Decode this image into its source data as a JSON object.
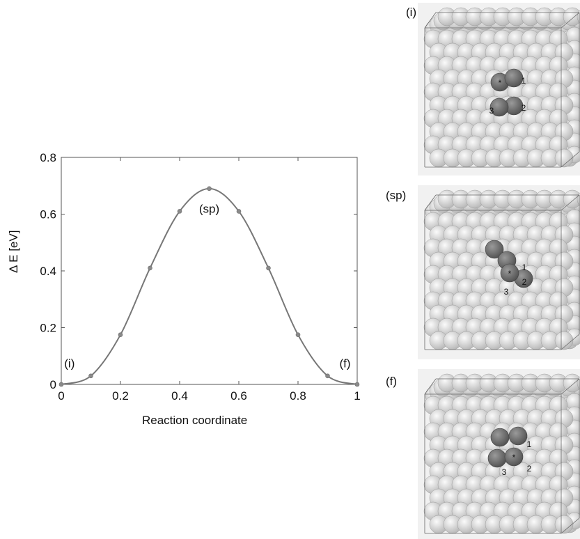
{
  "chart_data": {
    "type": "line",
    "xlabel": "Reaction coordinate",
    "ylabel": "Δ E [eV]",
    "xlim": [
      0,
      1
    ],
    "ylim": [
      0,
      0.8
    ],
    "x_ticks": [
      "0",
      "0.2",
      "0.4",
      "0.6",
      "0.8",
      "1"
    ],
    "y_ticks": [
      "0",
      "0.2",
      "0.4",
      "0.6",
      "0.8"
    ],
    "x": [
      0,
      0.1,
      0.2,
      0.3,
      0.4,
      0.5,
      0.6,
      0.7,
      0.8,
      0.9,
      1.0
    ],
    "y": [
      0,
      0.03,
      0.175,
      0.41,
      0.61,
      0.69,
      0.61,
      0.41,
      0.175,
      0.03,
      0
    ],
    "annotations": [
      {
        "text": "(i)",
        "x": 0.01,
        "y": 0.06
      },
      {
        "text": "(sp)",
        "x": 0.5,
        "y": 0.605
      },
      {
        "text": "(f)",
        "x": 0.94,
        "y": 0.06
      }
    ],
    "grid": false,
    "colors": {
      "line": "#777777",
      "marker": "#8a8a8a",
      "axes": "#555555"
    }
  },
  "panels": [
    {
      "label": "(i)",
      "atoms": [
        "*",
        "1",
        "2",
        "3"
      ]
    },
    {
      "label": "(sp)",
      "atoms": [
        "*",
        "1",
        "2",
        "3"
      ]
    },
    {
      "label": "(f)",
      "atoms": [
        "*",
        "1",
        "2",
        "3"
      ]
    }
  ]
}
